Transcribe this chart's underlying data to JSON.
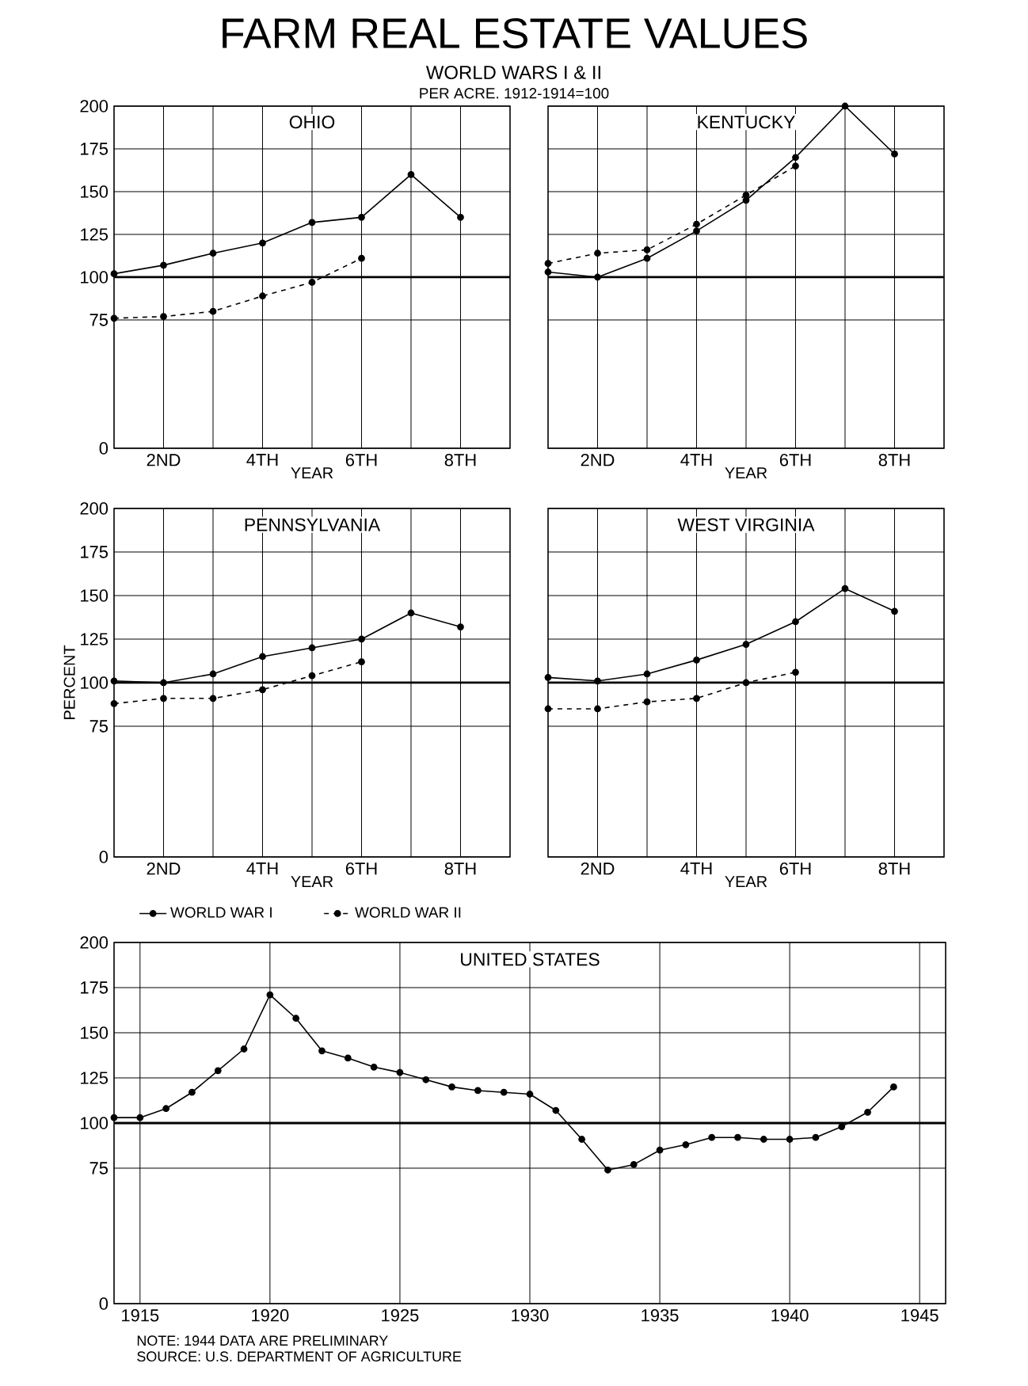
{
  "chart_data": [
    {
      "type": "other",
      "title": "FARM REAL ESTATE VALUES",
      "subtitle": "WORLD WARS I & II",
      "annotations": [
        "PER ACRE. 1912-1914=100"
      ]
    },
    {
      "type": "line",
      "title": "OHIO",
      "xlabel": "YEAR",
      "xlim": [
        1,
        9
      ],
      "xticks": [
        {
          "value": 2,
          "label": "2ND"
        },
        {
          "value": 3,
          "label": null
        },
        {
          "value": 4,
          "label": "4TH"
        },
        {
          "value": 5,
          "label": null
        },
        {
          "value": 6,
          "label": "6TH"
        },
        {
          "value": 7,
          "label": null
        },
        {
          "value": 8,
          "label": "8TH"
        }
      ],
      "ylim": [
        0,
        200
      ],
      "yticks": [
        0,
        75,
        100,
        125,
        150,
        175,
        200
      ],
      "grid": true,
      "marker": "circle",
      "ref_lines": [
        {
          "axis": "y",
          "value": 100
        }
      ],
      "series": [
        {
          "color": "#000000",
          "line_style": "solid",
          "x": [
            1,
            2,
            3,
            4,
            5,
            6,
            7,
            8
          ],
          "values": [
            102,
            107,
            114,
            120,
            132,
            135,
            160,
            135
          ]
        },
        {
          "color": "#000000",
          "line_style": "dashed",
          "x": [
            1,
            2,
            3,
            4,
            5,
            6
          ],
          "values": [
            76,
            77,
            80,
            89,
            97,
            111
          ]
        }
      ]
    },
    {
      "type": "line",
      "title": "KENTUCKY",
      "xlabel": "YEAR",
      "xlim": [
        1,
        9
      ],
      "xticks": [
        {
          "value": 2,
          "label": "2ND"
        },
        {
          "value": 3,
          "label": null
        },
        {
          "value": 4,
          "label": "4TH"
        },
        {
          "value": 5,
          "label": null
        },
        {
          "value": 6,
          "label": "6TH"
        },
        {
          "value": 7,
          "label": null
        },
        {
          "value": 8,
          "label": "8TH"
        }
      ],
      "ylim": [
        0,
        200
      ],
      "yticks": [
        0,
        75,
        100,
        125,
        150,
        175,
        200
      ],
      "tick_labels": "x",
      "grid": true,
      "marker": "circle",
      "ref_lines": [
        {
          "axis": "y",
          "value": 100
        }
      ],
      "series": [
        {
          "color": "#000000",
          "line_style": "solid",
          "x": [
            1,
            2,
            3,
            4,
            5,
            6,
            7,
            8
          ],
          "values": [
            103,
            100,
            111,
            127,
            145,
            170,
            200,
            172
          ]
        },
        {
          "color": "#000000",
          "line_style": "dashed",
          "x": [
            1,
            2,
            3,
            4,
            5,
            6
          ],
          "values": [
            108,
            114,
            116,
            131,
            148,
            165
          ]
        }
      ]
    },
    {
      "type": "line",
      "title": "PENNSYLVANIA",
      "xlabel": "YEAR",
      "ylabel": "PERCENT",
      "xlim": [
        1,
        9
      ],
      "xticks": [
        {
          "value": 2,
          "label": "2ND"
        },
        {
          "value": 3,
          "label": null
        },
        {
          "value": 4,
          "label": "4TH"
        },
        {
          "value": 5,
          "label": null
        },
        {
          "value": 6,
          "label": "6TH"
        },
        {
          "value": 7,
          "label": null
        },
        {
          "value": 8,
          "label": "8TH"
        }
      ],
      "ylim": [
        0,
        200
      ],
      "yticks": [
        0,
        75,
        100,
        125,
        150,
        175,
        200
      ],
      "grid": true,
      "marker": "circle",
      "legend": "bottom",
      "ref_lines": [
        {
          "axis": "y",
          "value": 100
        }
      ],
      "series": [
        {
          "name": "WORLD WAR I",
          "color": "#000000",
          "line_style": "solid",
          "x": [
            1,
            2,
            3,
            4,
            5,
            6,
            7,
            8
          ],
          "values": [
            101,
            100,
            105,
            115,
            120,
            125,
            140,
            132
          ]
        },
        {
          "name": "WORLD WAR II",
          "color": "#000000",
          "line_style": "dashed",
          "x": [
            1,
            2,
            3,
            4,
            5,
            6
          ],
          "values": [
            88,
            91,
            91,
            96,
            104,
            112
          ]
        }
      ]
    },
    {
      "type": "line",
      "title": "WEST VIRGINIA",
      "xlabel": "YEAR",
      "xlim": [
        1,
        9
      ],
      "xticks": [
        {
          "value": 2,
          "label": "2ND"
        },
        {
          "value": 3,
          "label": null
        },
        {
          "value": 4,
          "label": "4TH"
        },
        {
          "value": 5,
          "label": null
        },
        {
          "value": 6,
          "label": "6TH"
        },
        {
          "value": 7,
          "label": null
        },
        {
          "value": 8,
          "label": "8TH"
        }
      ],
      "ylim": [
        0,
        200
      ],
      "yticks": [
        0,
        75,
        100,
        125,
        150,
        175,
        200
      ],
      "tick_labels": "x",
      "grid": true,
      "marker": "circle",
      "ref_lines": [
        {
          "axis": "y",
          "value": 100
        }
      ],
      "series": [
        {
          "color": "#000000",
          "line_style": "solid",
          "x": [
            1,
            2,
            3,
            4,
            5,
            6,
            7,
            8
          ],
          "values": [
            103,
            101,
            105,
            113,
            122,
            135,
            154,
            141
          ]
        },
        {
          "color": "#000000",
          "line_style": "dashed",
          "x": [
            1,
            2,
            3,
            4,
            5,
            6
          ],
          "values": [
            85,
            85,
            89,
            91,
            100,
            106
          ]
        }
      ]
    },
    {
      "type": "line",
      "title": "UNITED STATES",
      "xlim": [
        1914,
        1946
      ],
      "xticks": [
        1915,
        1920,
        1925,
        1930,
        1935,
        1940,
        1945
      ],
      "ylim": [
        0,
        200
      ],
      "yticks": [
        0,
        75,
        100,
        125,
        150,
        175,
        200
      ],
      "grid": true,
      "marker": "circle",
      "ref_lines": [
        {
          "axis": "y",
          "value": 100
        }
      ],
      "annotations": [
        "NOTE: 1944 DATA ARE PRELIMINARY",
        "SOURCE: U.S. DEPARTMENT OF AGRICULTURE"
      ],
      "series": [
        {
          "color": "#000000",
          "line_style": "solid",
          "x": [
            1914,
            1915,
            1916,
            1917,
            1918,
            1919,
            1920,
            1921,
            1922,
            1923,
            1924,
            1925,
            1926,
            1927,
            1928,
            1929,
            1930,
            1931,
            1932,
            1933,
            1934,
            1935,
            1936,
            1937,
            1938,
            1939,
            1940,
            1941,
            1942,
            1943,
            1944
          ],
          "values": [
            103,
            103,
            108,
            117,
            129,
            141,
            171,
            158,
            140,
            136,
            131,
            128,
            124,
            120,
            118,
            117,
            116,
            107,
            91,
            74,
            77,
            85,
            88,
            92,
            92,
            91,
            91,
            92,
            98,
            106,
            120
          ]
        }
      ]
    }
  ]
}
